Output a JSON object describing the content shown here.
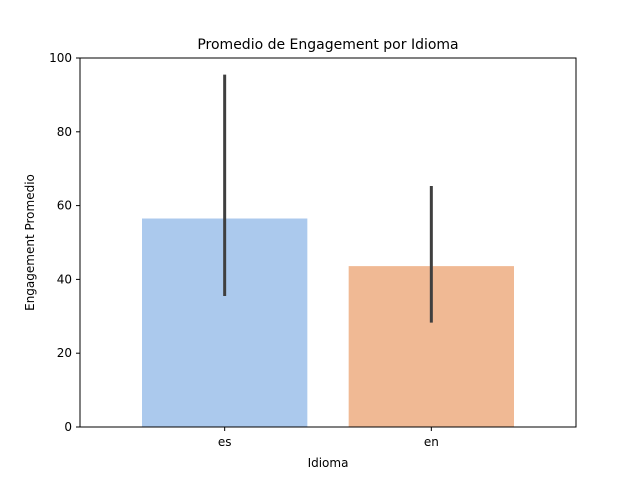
{
  "chart_data": {
    "type": "bar",
    "title": "Promedio de Engagement por Idioma",
    "xlabel": "Idioma",
    "ylabel": "Engagement Promedio",
    "categories": [
      "es",
      "en"
    ],
    "values": [
      56.5,
      43.6
    ],
    "error_low": [
      35.5,
      28.3
    ],
    "error_high": [
      95.5,
      65.3
    ],
    "colors": [
      "#abc9ed",
      "#f0b994"
    ],
    "error_color": "#3f3f3f",
    "ylim": [
      0,
      100
    ],
    "yticks": [
      0,
      20,
      40,
      60,
      80,
      100
    ],
    "grid": false,
    "legend": false
  }
}
